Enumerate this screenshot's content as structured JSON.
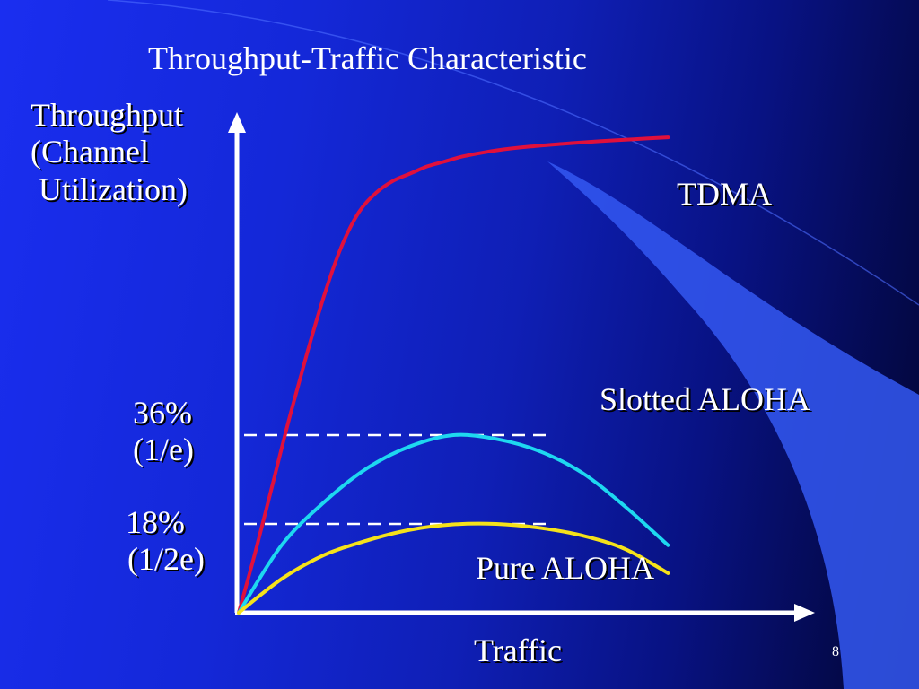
{
  "slide": {
    "page_number": "8",
    "colors": {
      "background_start": "#1a2ef0",
      "background_end": "#020530",
      "accent_shape": "#3a5af5",
      "axis": "#ffffff"
    }
  },
  "chart_data": {
    "type": "line",
    "title": "Throughput-Traffic Characteristic",
    "xlabel": "Traffic",
    "ylabel_lines": [
      "Throughput",
      "(Channel",
      " Utilization)"
    ],
    "x_tick_labels": [],
    "y_reference_lines": [
      {
        "lines": [
          "36%",
          "(1/e)"
        ],
        "value": 0.368,
        "style": "dashed"
      },
      {
        "lines": [
          "18%",
          "(1/2e)"
        ],
        "value": 0.184,
        "style": "dashed"
      }
    ],
    "xlim": [
      0,
      3
    ],
    "ylim": [
      0,
      1
    ],
    "grid": false,
    "legend": "inline labels",
    "series": [
      {
        "name": "TDMA",
        "color": "#e0103c",
        "x": [
          0,
          0.1,
          0.2,
          0.3,
          0.4,
          0.5,
          0.6,
          0.7,
          0.8,
          0.9,
          1.0,
          1.1,
          1.2,
          1.3,
          1.4,
          1.5,
          1.7,
          1.9,
          2.1,
          2.3,
          2.5
        ],
        "y": [
          0,
          0.13,
          0.27,
          0.41,
          0.54,
          0.66,
          0.76,
          0.83,
          0.87,
          0.895,
          0.91,
          0.925,
          0.935,
          0.945,
          0.952,
          0.958,
          0.966,
          0.972,
          0.977,
          0.981,
          0.985
        ]
      },
      {
        "name": "Slotted ALOHA",
        "color": "#1ed8f0",
        "x": [
          0,
          0.25,
          0.5,
          0.75,
          1.0,
          1.25,
          1.5,
          1.75,
          2.0,
          2.25,
          2.5
        ],
        "y": [
          0,
          0.14,
          0.23,
          0.3,
          0.345,
          0.368,
          0.36,
          0.335,
          0.29,
          0.22,
          0.14
        ]
      },
      {
        "name": "Pure ALOHA",
        "color": "#f5e21a",
        "x": [
          0,
          0.25,
          0.5,
          0.75,
          1.0,
          1.25,
          1.5,
          1.75,
          2.0,
          2.25,
          2.5
        ],
        "y": [
          0,
          0.07,
          0.12,
          0.15,
          0.172,
          0.183,
          0.184,
          0.176,
          0.16,
          0.132,
          0.082
        ]
      }
    ]
  }
}
